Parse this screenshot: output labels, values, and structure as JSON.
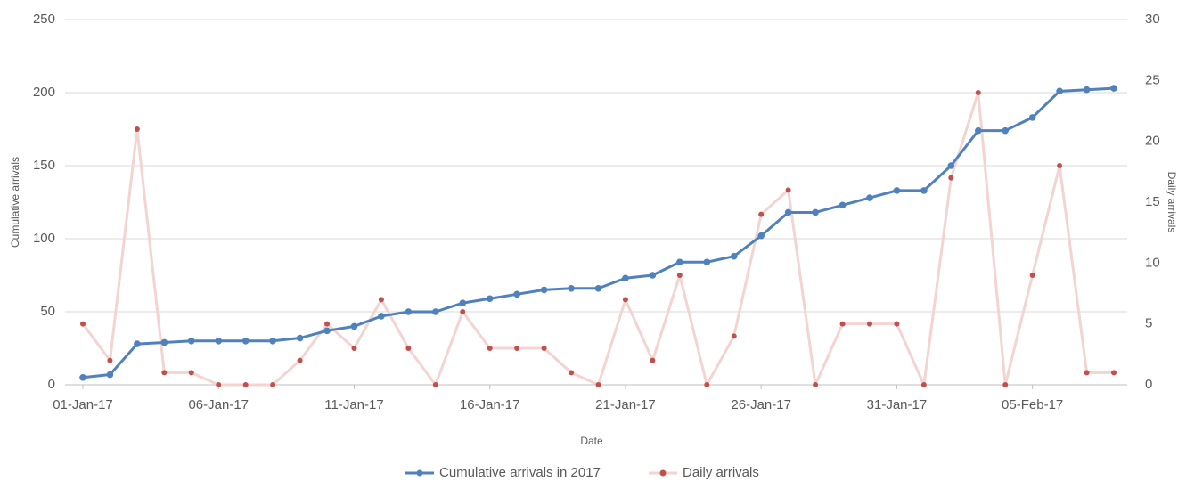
{
  "chart_data": {
    "type": "line",
    "x_label": "Date",
    "y_label": "Cumulative arrivals",
    "y2_label": "Daily arrivals",
    "categories": [
      "01-Jan-17",
      null,
      null,
      null,
      null,
      "06-Jan-17",
      null,
      null,
      null,
      null,
      "11-Jan-17",
      null,
      null,
      null,
      null,
      "16-Jan-17",
      null,
      null,
      null,
      null,
      "21-Jan-17",
      null,
      null,
      null,
      null,
      "26-Jan-17",
      null,
      null,
      null,
      null,
      "31-Jan-17",
      null,
      null,
      null,
      null,
      "05-Feb-17",
      null,
      null,
      null
    ],
    "series": [
      {
        "name": "Cumulative arrivals in 2017",
        "color": "#4f81bd",
        "axis": "y",
        "values": [
          5,
          7,
          28,
          29,
          30,
          30,
          30,
          30,
          32,
          37,
          40,
          47,
          50,
          50,
          56,
          59,
          62,
          65,
          66,
          66,
          73,
          75,
          84,
          84,
          88,
          102,
          118,
          118,
          123,
          128,
          133,
          133,
          150,
          174,
          174,
          183,
          201,
          202,
          203
        ]
      },
      {
        "name": "Daily arrivals",
        "color": "#c0504d",
        "line_color": "#f2d4d3",
        "axis": "y2",
        "values": [
          5,
          2,
          21,
          1,
          1,
          0,
          0,
          0,
          2,
          5,
          3,
          7,
          3,
          0,
          6,
          3,
          3,
          3,
          1,
          0,
          7,
          2,
          9,
          0,
          4,
          14,
          16,
          0,
          5,
          5,
          5,
          0,
          17,
          24,
          0,
          9,
          18,
          1,
          1
        ]
      }
    ],
    "ylim": [
      0,
      250
    ],
    "yticks": [
      0,
      50,
      100,
      150,
      200,
      250
    ],
    "y2lim": [
      0,
      30
    ],
    "y2ticks": [
      0,
      5,
      10,
      15,
      20,
      25,
      30
    ],
    "grid": true,
    "legend": "bottom"
  }
}
